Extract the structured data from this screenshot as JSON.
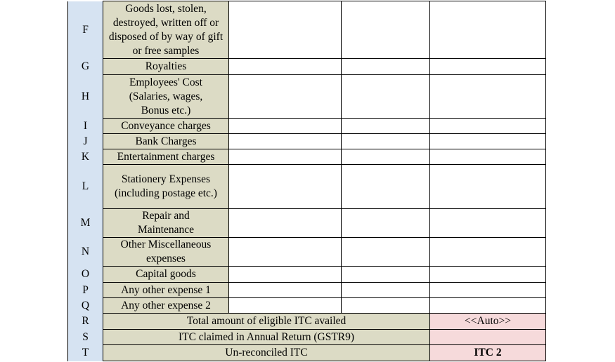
{
  "rows": [
    {
      "code": "F",
      "desc": "Goods lost, stolen, destroyed, written off or disposed of by way of gift or free samples"
    },
    {
      "code": "G",
      "desc": "Royalties"
    },
    {
      "code": "H",
      "desc": "Employees' Cost (Salaries, wages, Bonus etc.)"
    },
    {
      "code": "I",
      "desc": "Conveyance charges"
    },
    {
      "code": "J",
      "desc": "Bank Charges"
    },
    {
      "code": "K",
      "desc": "Entertainment charges"
    },
    {
      "code": "L",
      "desc": "Stationery Expenses (including postage etc.)"
    },
    {
      "code": "M",
      "desc": "Repair and Maintenance"
    },
    {
      "code": "N",
      "desc": "Other Miscellaneous expenses"
    },
    {
      "code": "O",
      "desc": "Capital goods"
    },
    {
      "code": "P",
      "desc": "Any other expense 1"
    },
    {
      "code": "Q",
      "desc": "Any other expense 2"
    }
  ],
  "summary": [
    {
      "code": "R",
      "label": "Total amount of eligible ITC availed",
      "value": "<<Auto>>"
    },
    {
      "code": "S",
      "label": "ITC claimed in Annual Return (GSTR9)",
      "value": ""
    },
    {
      "code": "T",
      "label": "Un-reconciled ITC",
      "value": "ITC 2"
    }
  ]
}
